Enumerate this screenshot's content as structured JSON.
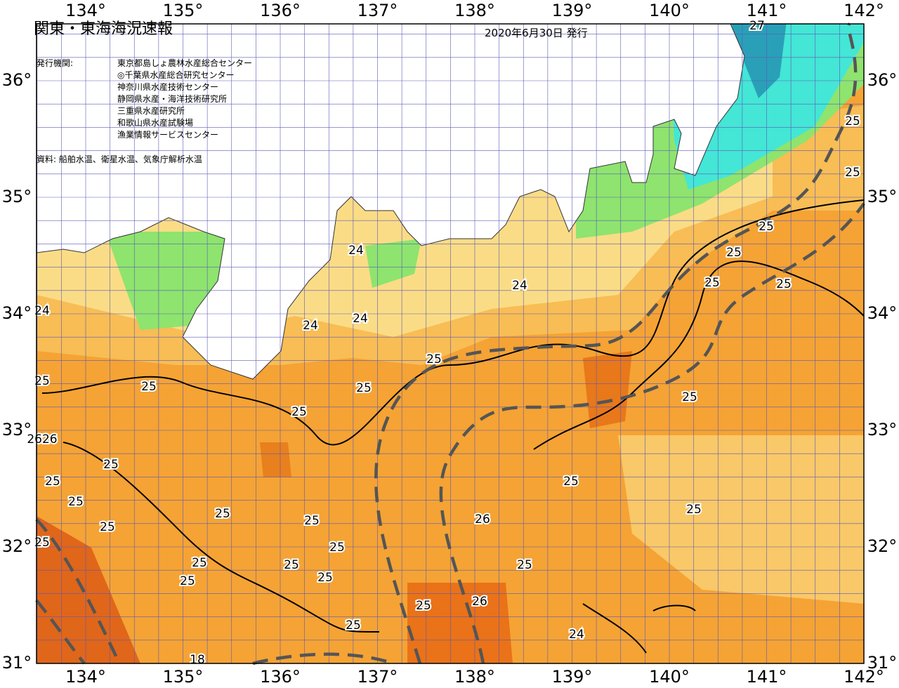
{
  "header": {
    "title": "関東・東海海況速報",
    "date": "2020年6月30日 発行"
  },
  "issuers": {
    "label": "発行機関:",
    "list": [
      "東京都島しょ農林水産総合センター",
      "◎千葉県水産総合研究センター",
      "神奈川県水産技術センター",
      "静岡県水産・海洋技術研究所",
      "三重県水産研究所",
      "和歌山県水産試験場",
      "漁業情報サービスセンター"
    ]
  },
  "source": "資料: 船舶水温、衛星水温、気象庁解析水温",
  "lon_labels": [
    "134°",
    "135°",
    "136°",
    "137°",
    "138°",
    "139°",
    "140°",
    "141°",
    "142°"
  ],
  "lat_labels": [
    "31°",
    "32°",
    "33°",
    "34°",
    "35°",
    "36°"
  ],
  "contour_labels": [
    "24",
    "24",
    "24",
    "24",
    "25",
    "25",
    "25",
    "25",
    "25",
    "25",
    "25",
    "25",
    "25",
    "25",
    "25",
    "25",
    "25",
    "25",
    "25",
    "25",
    "25",
    "26",
    "26",
    "25",
    "25",
    "25",
    "24",
    "25",
    "25",
    "25",
    "25",
    "25",
    "25",
    "25",
    "25",
    "27",
    "18",
    "2626",
    "24",
    "25",
    "25"
  ]
}
